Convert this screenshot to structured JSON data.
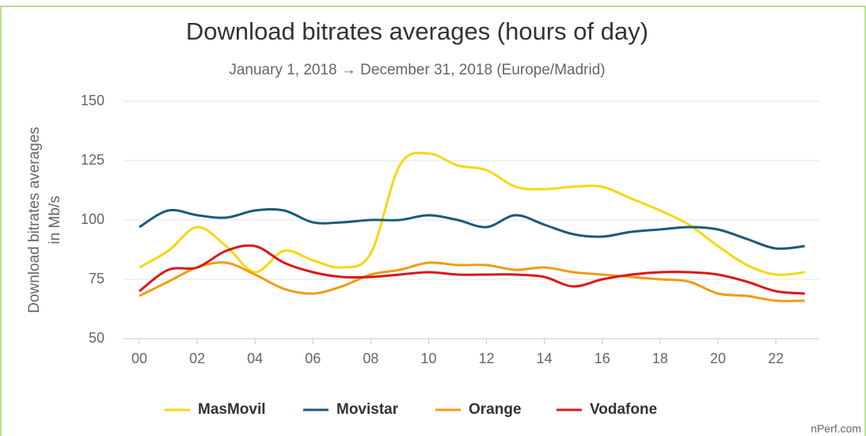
{
  "chart_data": {
    "type": "line",
    "title": "Download bitrates averages (hours of day)",
    "subtitle": "January 1, 2018 → December 31, 2018 (Europe/Madrid)",
    "y_label": [
      "Download bitrates averages",
      "in Mb/s"
    ],
    "source": "nPerf.com",
    "categories": [
      "00",
      null,
      "02",
      null,
      "04",
      null,
      "06",
      null,
      "08",
      null,
      "10",
      null,
      "12",
      null,
      "14",
      null,
      "16",
      null,
      "18",
      null,
      "20",
      null,
      "22",
      null
    ],
    "series": [
      {
        "name": "MasMovil",
        "color": "#f5d80f",
        "values": [
          80,
          87,
          97,
          89,
          78,
          87,
          83,
          80,
          86,
          123,
          128,
          123,
          121,
          114,
          113,
          114,
          114,
          109,
          104,
          98,
          89,
          81,
          77,
          78
        ]
      },
      {
        "name": "Movistar",
        "color": "#1b5b79",
        "values": [
          97,
          104,
          102,
          101,
          104,
          104,
          99,
          99,
          100,
          100,
          102,
          100,
          97,
          102,
          98,
          94,
          93,
          95,
          96,
          97,
          96,
          92,
          88,
          89
        ]
      },
      {
        "name": "Orange",
        "color": "#f39a14",
        "values": [
          68,
          74,
          80,
          82,
          77,
          71,
          69,
          72,
          77,
          79,
          82,
          81,
          81,
          79,
          80,
          78,
          77,
          76,
          75,
          74,
          69,
          68,
          66,
          66
        ]
      },
      {
        "name": "Vodafone",
        "color": "#d9181c",
        "values": [
          70,
          79,
          80,
          87,
          89,
          82,
          78,
          76,
          76,
          77,
          78,
          77,
          77,
          77,
          76,
          72,
          75,
          77,
          78,
          78,
          77,
          74,
          70,
          69
        ]
      }
    ],
    "ylim": [
      50,
      150
    ],
    "yticks": [
      50,
      75,
      100,
      125,
      150
    ],
    "grid": true,
    "legend": "bottom"
  }
}
